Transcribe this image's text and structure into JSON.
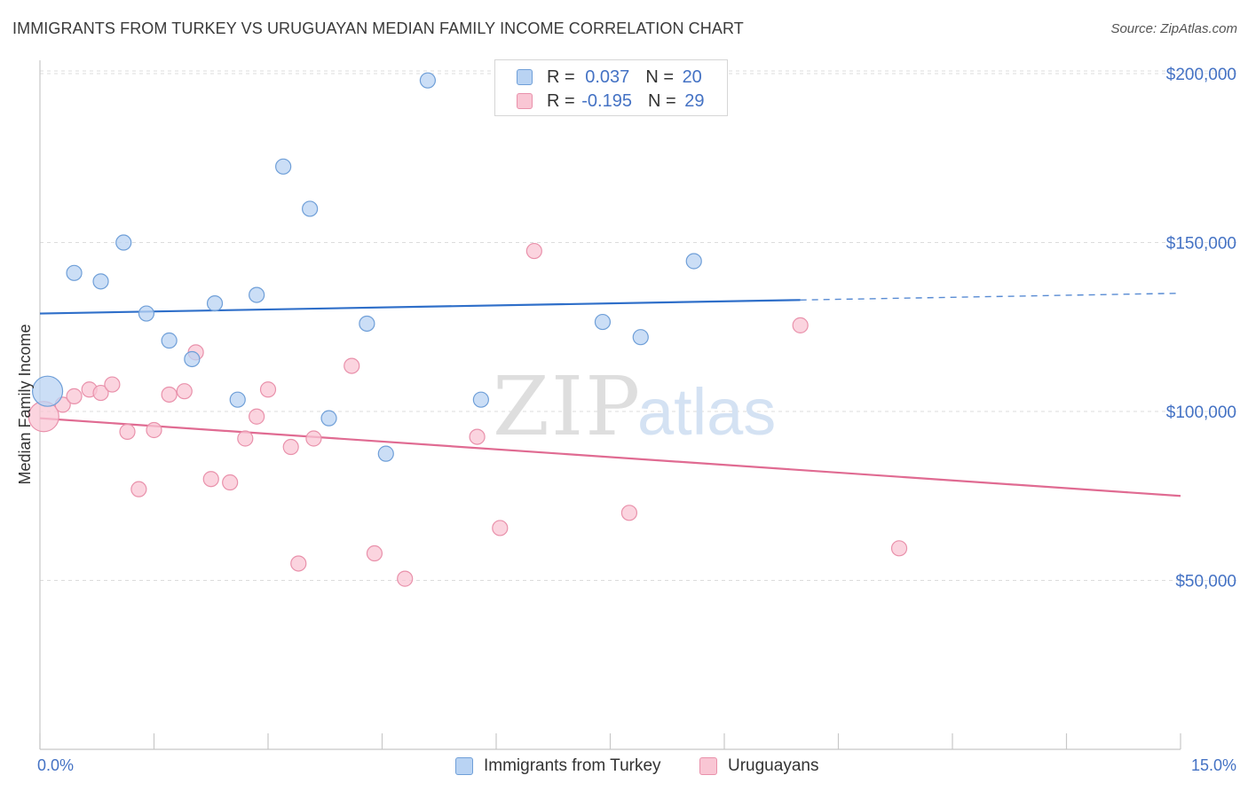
{
  "header": {
    "title": "IMMIGRANTS FROM TURKEY VS URUGUAYAN MEDIAN FAMILY INCOME CORRELATION CHART",
    "source": "Source: ZipAtlas.com"
  },
  "watermark": {
    "zip": "ZIP",
    "atlas": "atlas"
  },
  "legend": {
    "rows": [
      {
        "r_label": "R =",
        "r_value": "0.037",
        "n_label": "N =",
        "n_value": "20"
      },
      {
        "r_label": "R =",
        "r_value": "-0.195",
        "n_label": "N =",
        "n_value": "29"
      }
    ]
  },
  "bottom_legend": {
    "series1": "Immigrants from Turkey",
    "series2": "Uruguayans"
  },
  "colors": {
    "series1_fill": "#b9d3f3",
    "series1_stroke": "#6f9fd8",
    "series1_line": "#2f6fc9",
    "series2_fill": "#f9c6d4",
    "series2_stroke": "#e991ab",
    "series2_line": "#e06b92",
    "tick_label": "#4472c4",
    "grid": "#dcdcdc"
  },
  "chart_data": {
    "type": "scatter",
    "title": "IMMIGRANTS FROM TURKEY VS URUGUAYAN MEDIAN FAMILY INCOME CORRELATION CHART",
    "xlabel": "",
    "ylabel": "Median Family Income",
    "xlim": [
      0,
      15
    ],
    "ylim": [
      0,
      205000
    ],
    "x_tick_labels": [
      "0.0%",
      "15.0%"
    ],
    "y_ticks": [
      50000,
      100000,
      150000,
      200000
    ],
    "y_tick_labels": [
      "$50,000",
      "$100,000",
      "$150,000",
      "$200,000"
    ],
    "grid": true,
    "legend_position": "top-center",
    "series": [
      {
        "name": "Immigrants from Turkey",
        "points": [
          {
            "x": 0.1,
            "y": 106000,
            "size": "large"
          },
          {
            "x": 0.45,
            "y": 141000
          },
          {
            "x": 0.8,
            "y": 138500
          },
          {
            "x": 1.1,
            "y": 150000
          },
          {
            "x": 1.4,
            "y": 129000
          },
          {
            "x": 1.7,
            "y": 121000
          },
          {
            "x": 2.0,
            "y": 115500
          },
          {
            "x": 2.3,
            "y": 132000
          },
          {
            "x": 2.6,
            "y": 103500
          },
          {
            "x": 2.85,
            "y": 134500
          },
          {
            "x": 3.2,
            "y": 172500
          },
          {
            "x": 3.55,
            "y": 160000
          },
          {
            "x": 3.8,
            "y": 98000
          },
          {
            "x": 4.3,
            "y": 126000
          },
          {
            "x": 4.55,
            "y": 87500
          },
          {
            "x": 5.1,
            "y": 198000
          },
          {
            "x": 5.8,
            "y": 103500
          },
          {
            "x": 7.4,
            "y": 126500
          },
          {
            "x": 7.9,
            "y": 122000
          },
          {
            "x": 8.6,
            "y": 144500
          }
        ],
        "trend": {
          "x0": 0,
          "y0": 129000,
          "x1": 10.0,
          "y1": 133000,
          "dashed_to_x": 15.0,
          "dashed_to_y": 135000
        }
      },
      {
        "name": "Uruguayans",
        "points": [
          {
            "x": 0.05,
            "y": 98500,
            "size": "large"
          },
          {
            "x": 0.3,
            "y": 102000
          },
          {
            "x": 0.45,
            "y": 104500
          },
          {
            "x": 0.65,
            "y": 106500
          },
          {
            "x": 0.8,
            "y": 105500
          },
          {
            "x": 0.95,
            "y": 108000
          },
          {
            "x": 1.15,
            "y": 94000
          },
          {
            "x": 1.3,
            "y": 77000
          },
          {
            "x": 1.5,
            "y": 94500
          },
          {
            "x": 1.7,
            "y": 105000
          },
          {
            "x": 1.9,
            "y": 106000
          },
          {
            "x": 2.05,
            "y": 117500
          },
          {
            "x": 2.25,
            "y": 80000
          },
          {
            "x": 2.5,
            "y": 79000
          },
          {
            "x": 2.7,
            "y": 92000
          },
          {
            "x": 2.85,
            "y": 98500
          },
          {
            "x": 3.0,
            "y": 106500
          },
          {
            "x": 3.3,
            "y": 89500
          },
          {
            "x": 3.4,
            "y": 55000
          },
          {
            "x": 3.6,
            "y": 92000
          },
          {
            "x": 4.1,
            "y": 113500
          },
          {
            "x": 4.4,
            "y": 58000
          },
          {
            "x": 4.8,
            "y": 50500
          },
          {
            "x": 5.75,
            "y": 92500
          },
          {
            "x": 6.05,
            "y": 65500
          },
          {
            "x": 6.5,
            "y": 147500
          },
          {
            "x": 7.75,
            "y": 70000
          },
          {
            "x": 10.0,
            "y": 125500
          },
          {
            "x": 11.3,
            "y": 59500
          }
        ],
        "trend": {
          "x0": 0,
          "y0": 98000,
          "x1": 15.0,
          "y1": 75000
        }
      }
    ]
  }
}
